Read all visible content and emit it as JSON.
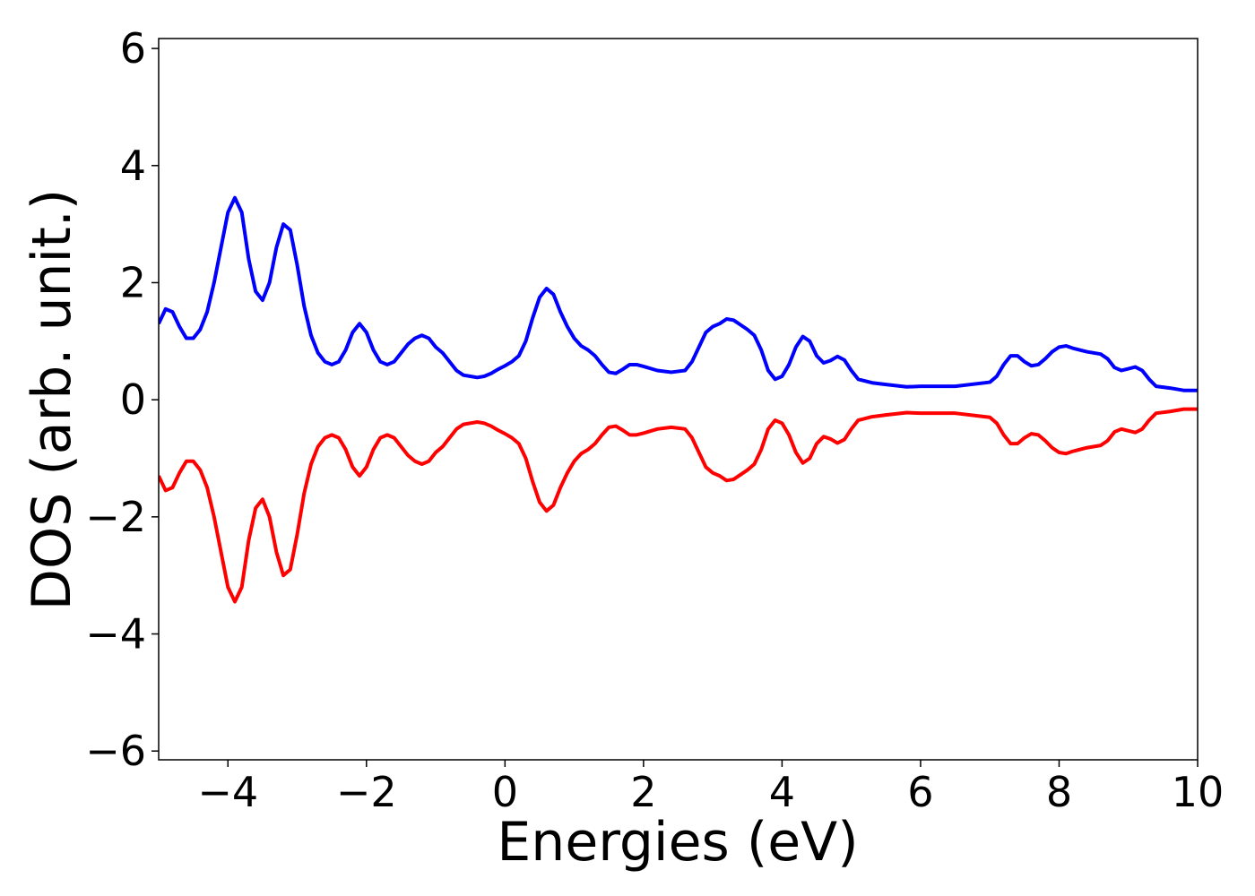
{
  "chart_data": {
    "type": "line",
    "xlabel": "Energies (eV)",
    "ylabel": "DOS (arb. unit.)",
    "x": [
      -5.0,
      -4.9,
      -4.8,
      -4.7,
      -4.6,
      -4.5,
      -4.4,
      -4.3,
      -4.2,
      -4.1,
      -4.0,
      -3.9,
      -3.8,
      -3.7,
      -3.6,
      -3.5,
      -3.4,
      -3.3,
      -3.2,
      -3.1,
      -3.0,
      -2.9,
      -2.8,
      -2.7,
      -2.6,
      -2.5,
      -2.4,
      -2.3,
      -2.2,
      -2.1,
      -2.0,
      -1.9,
      -1.8,
      -1.7,
      -1.6,
      -1.5,
      -1.4,
      -1.3,
      -1.2,
      -1.1,
      -1.0,
      -0.9,
      -0.8,
      -0.7,
      -0.6,
      -0.5,
      -0.4,
      -0.3,
      -0.2,
      -0.1,
      0.0,
      0.1,
      0.2,
      0.3,
      0.4,
      0.5,
      0.6,
      0.7,
      0.8,
      0.9,
      1.0,
      1.1,
      1.2,
      1.3,
      1.4,
      1.5,
      1.6,
      1.7,
      1.8,
      1.9,
      2.0,
      2.2,
      2.4,
      2.6,
      2.7,
      2.8,
      2.9,
      3.0,
      3.1,
      3.2,
      3.3,
      3.4,
      3.5,
      3.6,
      3.7,
      3.8,
      3.9,
      4.0,
      4.1,
      4.2,
      4.3,
      4.4,
      4.5,
      4.6,
      4.7,
      4.8,
      4.9,
      5.0,
      5.1,
      5.3,
      5.5,
      5.8,
      6.0,
      6.5,
      7.0,
      7.1,
      7.2,
      7.3,
      7.4,
      7.5,
      7.6,
      7.7,
      7.8,
      7.9,
      8.0,
      8.1,
      8.2,
      8.4,
      8.6,
      8.7,
      8.8,
      8.9,
      9.0,
      9.1,
      9.2,
      9.3,
      9.4,
      9.6,
      9.8,
      10.0
    ],
    "series": [
      {
        "color": "#0000ff",
        "values": [
          1.3,
          1.55,
          1.5,
          1.25,
          1.05,
          1.05,
          1.2,
          1.5,
          2.0,
          2.6,
          3.2,
          3.45,
          3.2,
          2.4,
          1.85,
          1.7,
          2.0,
          2.6,
          3.0,
          2.9,
          2.3,
          1.6,
          1.1,
          0.8,
          0.65,
          0.6,
          0.65,
          0.85,
          1.15,
          1.3,
          1.15,
          0.85,
          0.65,
          0.6,
          0.65,
          0.8,
          0.95,
          1.05,
          1.1,
          1.05,
          0.9,
          0.8,
          0.65,
          0.5,
          0.42,
          0.4,
          0.38,
          0.4,
          0.45,
          0.52,
          0.58,
          0.65,
          0.75,
          1.0,
          1.4,
          1.75,
          1.9,
          1.8,
          1.5,
          1.25,
          1.05,
          0.92,
          0.85,
          0.75,
          0.6,
          0.47,
          0.45,
          0.52,
          0.6,
          0.6,
          0.57,
          0.5,
          0.47,
          0.5,
          0.65,
          0.9,
          1.15,
          1.25,
          1.3,
          1.38,
          1.36,
          1.28,
          1.2,
          1.1,
          0.85,
          0.5,
          0.35,
          0.4,
          0.6,
          0.9,
          1.08,
          1.0,
          0.75,
          0.63,
          0.67,
          0.74,
          0.68,
          0.5,
          0.35,
          0.29,
          0.26,
          0.22,
          0.23,
          0.23,
          0.3,
          0.4,
          0.6,
          0.75,
          0.75,
          0.65,
          0.58,
          0.6,
          0.7,
          0.82,
          0.9,
          0.92,
          0.88,
          0.82,
          0.78,
          0.7,
          0.55,
          0.5,
          0.53,
          0.56,
          0.5,
          0.35,
          0.23,
          0.2,
          0.16,
          0.16
        ]
      },
      {
        "color": "#ff0000",
        "values": [
          -1.3,
          -1.55,
          -1.5,
          -1.25,
          -1.05,
          -1.05,
          -1.2,
          -1.5,
          -2.0,
          -2.6,
          -3.2,
          -3.45,
          -3.2,
          -2.4,
          -1.85,
          -1.7,
          -2.0,
          -2.6,
          -3.0,
          -2.9,
          -2.3,
          -1.6,
          -1.1,
          -0.8,
          -0.65,
          -0.6,
          -0.65,
          -0.85,
          -1.15,
          -1.3,
          -1.15,
          -0.85,
          -0.65,
          -0.6,
          -0.65,
          -0.8,
          -0.95,
          -1.05,
          -1.1,
          -1.05,
          -0.9,
          -0.8,
          -0.65,
          -0.5,
          -0.42,
          -0.4,
          -0.38,
          -0.4,
          -0.45,
          -0.52,
          -0.58,
          -0.65,
          -0.75,
          -1.0,
          -1.4,
          -1.75,
          -1.9,
          -1.8,
          -1.5,
          -1.25,
          -1.05,
          -0.92,
          -0.85,
          -0.75,
          -0.6,
          -0.47,
          -0.45,
          -0.52,
          -0.6,
          -0.6,
          -0.57,
          -0.5,
          -0.47,
          -0.5,
          -0.65,
          -0.9,
          -1.15,
          -1.25,
          -1.3,
          -1.38,
          -1.36,
          -1.28,
          -1.2,
          -1.1,
          -0.85,
          -0.5,
          -0.35,
          -0.4,
          -0.6,
          -0.9,
          -1.08,
          -1.0,
          -0.75,
          -0.63,
          -0.67,
          -0.74,
          -0.68,
          -0.5,
          -0.35,
          -0.29,
          -0.26,
          -0.22,
          -0.23,
          -0.23,
          -0.3,
          -0.4,
          -0.6,
          -0.75,
          -0.75,
          -0.65,
          -0.58,
          -0.6,
          -0.7,
          -0.82,
          -0.9,
          -0.92,
          -0.88,
          -0.82,
          -0.78,
          -0.7,
          -0.55,
          -0.5,
          -0.53,
          -0.56,
          -0.5,
          -0.35,
          -0.23,
          -0.2,
          -0.16,
          -0.16
        ]
      }
    ],
    "xlim": [
      -5,
      10
    ],
    "xticks": [
      {
        "value": -4,
        "label": "−4"
      },
      {
        "value": -2,
        "label": "−2"
      },
      0,
      2,
      4,
      6,
      8,
      10
    ],
    "ylim": [
      -6.15,
      6.17
    ],
    "yticks": [
      {
        "value": -6,
        "label": "−6"
      },
      {
        "value": -4,
        "label": "−4"
      },
      {
        "value": -2,
        "label": "−2"
      },
      0,
      2,
      4,
      6
    ],
    "grid": false
  }
}
